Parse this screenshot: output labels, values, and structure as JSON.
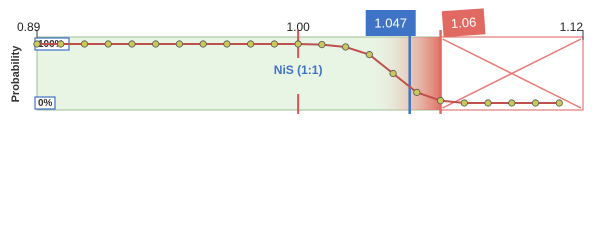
{
  "chart_data": {
    "type": "line",
    "x": [
      0.89,
      0.9,
      0.91,
      0.92,
      0.93,
      0.94,
      0.95,
      0.96,
      0.97,
      0.98,
      0.99,
      1.0,
      1.01,
      1.02,
      1.03,
      1.04,
      1.05,
      1.06,
      1.07,
      1.08,
      1.09,
      1.1,
      1.11
    ],
    "values": [
      100,
      100,
      100,
      100,
      100,
      100,
      100,
      100,
      100,
      100,
      100,
      100,
      99,
      95,
      82,
      50,
      18,
      4,
      0,
      0,
      0,
      0,
      0
    ],
    "color": "#c0504d",
    "marker_color": "#c9c95a",
    "xlim": [
      0.89,
      1.12
    ],
    "xticks": [
      0.89,
      {
        "value": 1.0,
        "label": "1.00"
      },
      1.12
    ],
    "ylim": [
      0,
      100
    ],
    "yticks": [
      {
        "value": 0,
        "label": "0%"
      },
      {
        "value": 100,
        "label": "100%"
      }
    ],
    "ylabel": "Probability",
    "annotation": "NiS (1:1)",
    "markers": [
      {
        "value": 1.047,
        "color": "#3f73c6"
      },
      {
        "value": 1.06,
        "color": "#e06a62"
      }
    ]
  }
}
